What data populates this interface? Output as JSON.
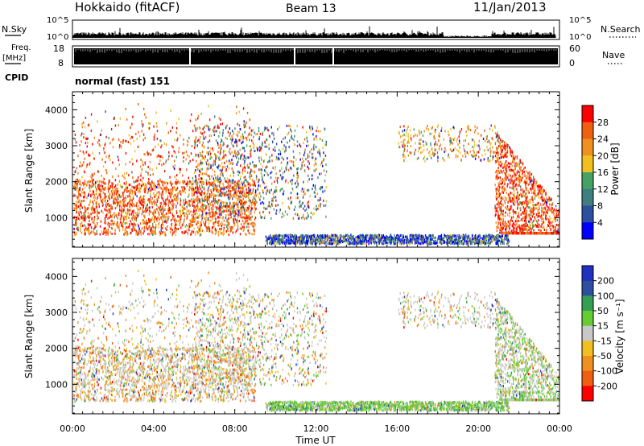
{
  "header": {
    "station": "Hokkaido (fitACF)",
    "beam": "Beam 13",
    "date": "11/Jan/2013"
  },
  "panels": {
    "nsky": {
      "label": "N.Sky",
      "ticks": [
        "10^5",
        "10^0"
      ],
      "right_label": "N.Search",
      "right_ticks": [
        "10^5",
        "10^0"
      ]
    },
    "freq": {
      "label_top": "Freq.",
      "label_unit": "[MHz]",
      "ticks": [
        "18",
        "8"
      ],
      "right_label": "Nave",
      "right_ticks": [
        "60",
        "0"
      ]
    },
    "cpid": {
      "label": "CPID",
      "value": "normal (fast) 151"
    }
  },
  "colors": {
    "power": [
      "#0000ff",
      "#2c4fa0",
      "#3f7f7f",
      "#45a265",
      "#f0c020",
      "#f09020",
      "#f06010",
      "#ff0000"
    ],
    "velocity": [
      "#ff0000",
      "#f06010",
      "#f09020",
      "#f0c020",
      "#c8c8c8",
      "#66cc33",
      "#33a055",
      "#2c4fa0",
      "#2030c0"
    ]
  },
  "chart_data": [
    {
      "type": "heatmap",
      "name": "power",
      "ylabel": "Slant Range [km]",
      "x_range_hours": [
        0,
        24
      ],
      "ylim": [
        180,
        4500
      ],
      "yticks": [
        1000,
        2000,
        3000,
        4000
      ],
      "colorbar": {
        "label": "Power [dB]",
        "ticks": [
          4,
          8,
          12,
          16,
          20,
          24,
          28
        ]
      }
    },
    {
      "type": "heatmap",
      "name": "velocity",
      "ylabel": "Slant Range [km]",
      "x_range_hours": [
        0,
        24
      ],
      "ylim": [
        180,
        4500
      ],
      "yticks": [
        1000,
        2000,
        3000,
        4000
      ],
      "colorbar": {
        "label": "Velocity [m s⁻¹]",
        "ticks": [
          -200,
          -100,
          -50,
          -15,
          15,
          50,
          100,
          200
        ]
      }
    }
  ],
  "xaxis": {
    "label": "Time UT",
    "ticks": [
      "00:00",
      "04:00",
      "08:00",
      "12:00",
      "16:00",
      "20:00",
      "00:00"
    ]
  }
}
